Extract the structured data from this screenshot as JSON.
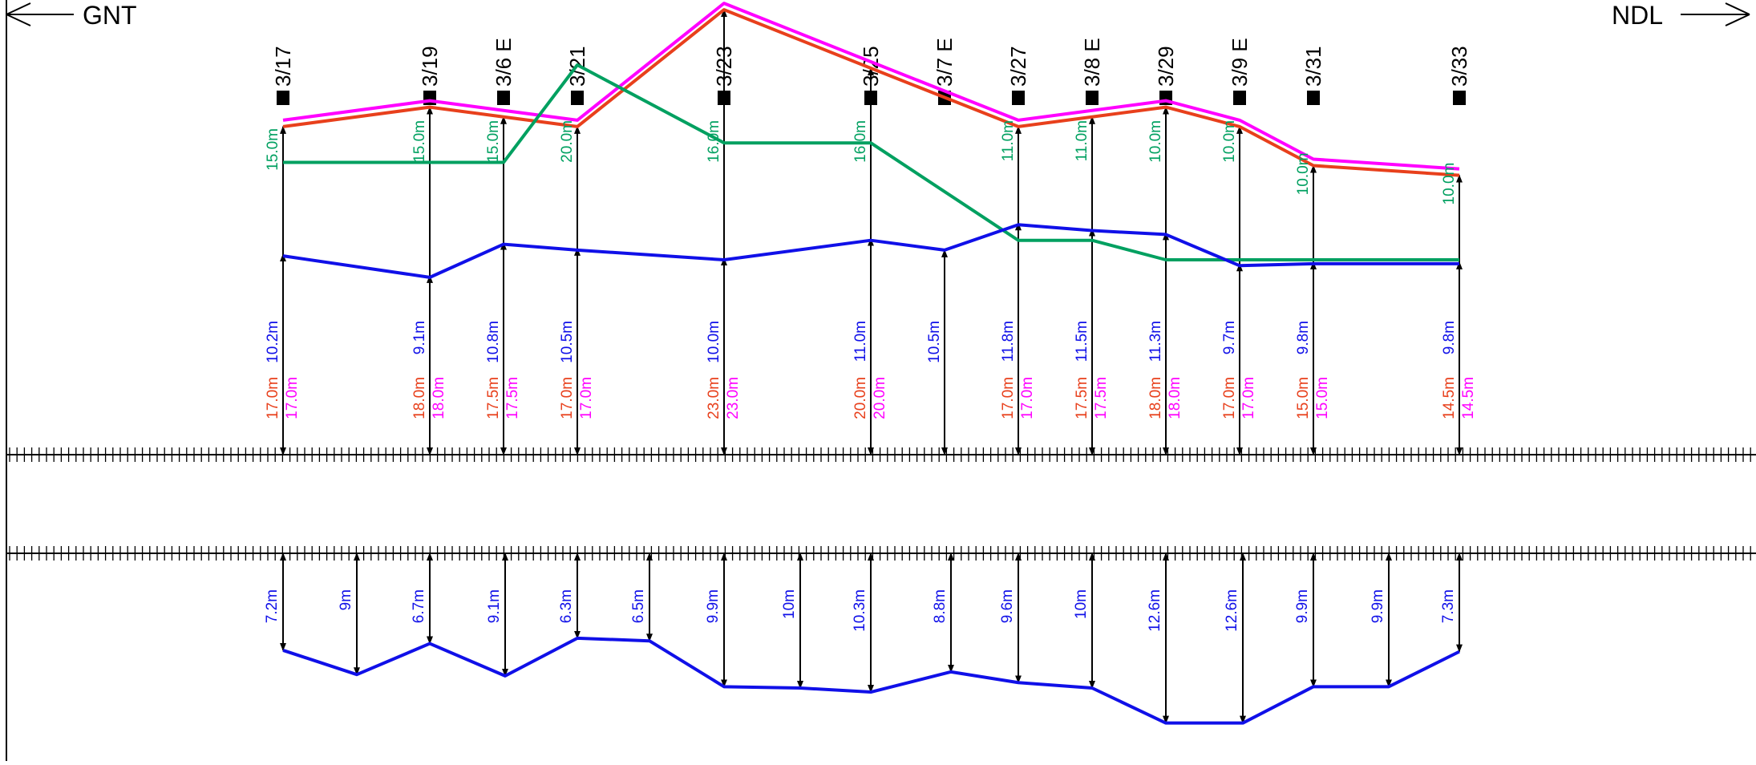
{
  "header": {
    "left_direction": "GNT",
    "right_direction": "NDL"
  },
  "colors": {
    "magenta": "#ff00ff",
    "orange": "#e8401c",
    "green": "#00a060",
    "blue": "#1010e8",
    "black": "#000000"
  },
  "poles": [
    {
      "id": "3/17",
      "label": "3/17",
      "green": "15.0m",
      "blue": "10.2m",
      "orange": "17.0m",
      "magenta": "17.0m",
      "has_top_arrow": true
    },
    {
      "id": "3/19",
      "label": "3/19",
      "green": "15.0m",
      "blue": "9.1m",
      "orange": "18.0m",
      "magenta": "18.0m",
      "has_top_arrow": true
    },
    {
      "id": "3/6E",
      "label": "3/6 E",
      "green": "15.0m",
      "blue": "10.8m",
      "orange": "17.5m",
      "magenta": "17.5m",
      "has_top_arrow": true
    },
    {
      "id": "3/21",
      "label": "3/21",
      "green": "20.0m",
      "blue": "10.5m",
      "orange": "17.0m",
      "magenta": "17.0m",
      "has_top_arrow": true
    },
    {
      "id": "3/23",
      "label": "3/23",
      "green": "16.0m",
      "blue": "10.0m",
      "orange": "23.0m",
      "magenta": "23.0m",
      "has_top_arrow": true
    },
    {
      "id": "3/25",
      "label": "3/25",
      "green": "16.0m",
      "blue": "11.0m",
      "orange": "20.0m",
      "magenta": "20.0m",
      "has_top_arrow": true
    },
    {
      "id": "3/7E",
      "label": "3/7 E",
      "green": "",
      "blue": "10.5m",
      "orange": "",
      "magenta": "",
      "has_top_arrow": false
    },
    {
      "id": "3/27",
      "label": "3/27",
      "green": "11.0m",
      "blue": "11.8m",
      "orange": "17.0m",
      "magenta": "17.0m",
      "has_top_arrow": true
    },
    {
      "id": "3/8E",
      "label": "3/8 E",
      "green": "11.0m",
      "blue": "11.5m",
      "orange": "17.5m",
      "magenta": "17.5m",
      "has_top_arrow": true
    },
    {
      "id": "3/29",
      "label": "3/29",
      "green": "10.0m",
      "blue": "11.3m",
      "orange": "18.0m",
      "magenta": "18.0m",
      "has_top_arrow": true
    },
    {
      "id": "3/9E",
      "label": "3/9 E",
      "green": "10.0m",
      "blue": "9.7m",
      "orange": "17.0m",
      "magenta": "17.0m",
      "has_top_arrow": true
    },
    {
      "id": "3/31",
      "label": "3/31",
      "green": "10.0m",
      "blue": "9.8m",
      "orange": "15.0m",
      "magenta": "15.0m",
      "has_top_arrow": true
    },
    {
      "id": "3/33",
      "label": "3/33",
      "green": "10.0m",
      "blue": "9.8m",
      "orange": "14.5m",
      "magenta": "14.5m",
      "has_top_arrow": true
    }
  ],
  "lower_measurements": [
    {
      "label": "7.2m",
      "value": 7.2
    },
    {
      "label": "9m",
      "value": 9.0
    },
    {
      "label": "6.7m",
      "value": 6.7
    },
    {
      "label": "9.1m",
      "value": 9.1
    },
    {
      "label": "6.3m",
      "value": 6.3
    },
    {
      "label": "6.5m",
      "value": 6.5
    },
    {
      "label": "9.9m",
      "value": 9.9
    },
    {
      "label": "10m",
      "value": 10.0
    },
    {
      "label": "10.3m",
      "value": 10.3
    },
    {
      "label": "8.8m",
      "value": 8.8
    },
    {
      "label": "9.6m",
      "value": 9.6
    },
    {
      "label": "10m",
      "value": 10.0
    },
    {
      "label": "12.6m",
      "value": 12.6
    },
    {
      "label": "12.6m",
      "value": 12.6
    },
    {
      "label": "9.9m",
      "value": 9.9
    },
    {
      "label": "9.9m",
      "value": 9.9
    },
    {
      "label": "7.3m",
      "value": 7.3
    }
  ]
}
